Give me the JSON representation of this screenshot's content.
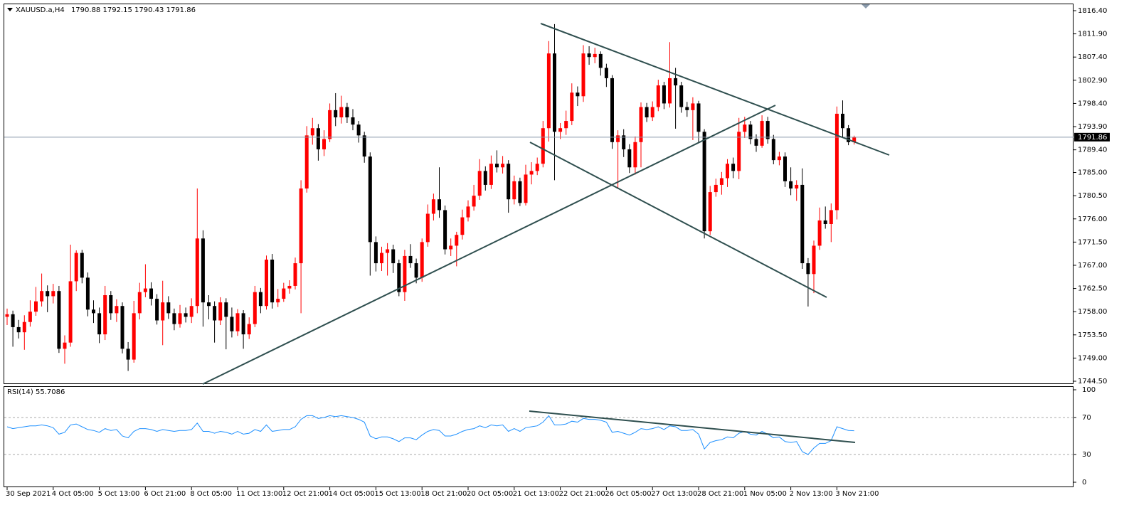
{
  "chart_data": [
    {
      "type": "candlestick",
      "symbol": "XAUUSD.a,H4",
      "up_color": "#ff0000",
      "down_color": "#000000",
      "price_line_color": "#8a9aab",
      "categories": [
        "30 Sep 2021",
        null,
        null,
        null,
        null,
        null,
        null,
        null,
        "4 Oct 05:00",
        null,
        null,
        null,
        null,
        null,
        null,
        null,
        "5 Oct 13:00",
        null,
        null,
        null,
        null,
        null,
        null,
        null,
        "6 Oct 21:00",
        null,
        null,
        null,
        null,
        null,
        null,
        null,
        "8 Oct 05:00",
        null,
        null,
        null,
        null,
        null,
        null,
        null,
        "11 Oct 13:00",
        null,
        null,
        null,
        null,
        null,
        null,
        null,
        "12 Oct 21:00",
        null,
        null,
        null,
        null,
        null,
        null,
        null,
        "14 Oct 05:00",
        null,
        null,
        null,
        null,
        null,
        null,
        null,
        "15 Oct 13:00",
        null,
        null,
        null,
        null,
        null,
        null,
        null,
        "18 Oct 21:00",
        null,
        null,
        null,
        null,
        null,
        null,
        null,
        "20 Oct 05:00",
        null,
        null,
        null,
        null,
        null,
        null,
        null,
        "21 Oct 13:00",
        null,
        null,
        null,
        null,
        null,
        null,
        null,
        "22 Oct 21:00",
        null,
        null,
        null,
        null,
        null,
        null,
        null,
        "26 Oct 05:00",
        null,
        null,
        null,
        null,
        null,
        null,
        null,
        "27 Oct 13:00",
        null,
        null,
        null,
        null,
        null,
        null,
        null,
        "28 Oct 21:00",
        null,
        null,
        null,
        null,
        null,
        null,
        null,
        "1 Nov 05:00",
        null,
        null,
        null,
        null,
        null,
        null,
        null,
        "2 Nov 13:00",
        null,
        null,
        null,
        null,
        null,
        null,
        null,
        "3 Nov 21:00",
        null,
        null,
        null
      ],
      "open": [
        1757.0,
        1757.5,
        1755,
        1754,
        1756,
        1758,
        1760,
        1762,
        1761,
        1762,
        1750.8,
        1752,
        1763.9,
        1769.4,
        1764.6,
        1758.4,
        1757.7,
        1753.6,
        1761.2,
        1757.7,
        1759.1,
        1750.8,
        1748.7,
        1757.7,
        1761.8,
        1762.5,
        1760.5,
        1756.3,
        1759.8,
        1757.7,
        1755.6,
        1757.7,
        1757.0,
        1759.1,
        1772.2,
        1759.8,
        1759.1,
        1756.3,
        1759.8,
        1757.0,
        1754.2,
        1757.7,
        1753.6,
        1755.6,
        1761.8,
        1759.1,
        1768.1,
        1759.8,
        1760.5,
        1762.5,
        1763.0,
        1767.4,
        1781.9,
        1792.2,
        1793.6,
        1789.5,
        1791.5,
        1797.1,
        1795.7,
        1797.7,
        1795.7,
        1794.3,
        1792.2,
        1788.1,
        1771.5,
        1767.4,
        1769.4,
        1770.1,
        1767.4,
        1761.8,
        1768.8,
        1767.4,
        1764.6,
        1771.5,
        1777.0,
        1779.8,
        1777.7,
        1770.1,
        1770.8,
        1772.9,
        1776.3,
        1778.4,
        1780.5,
        1785.3,
        1782.6,
        1786.7,
        1786.0,
        1786.7,
        1779.8,
        1783.3,
        1779.1,
        1784.6,
        1785.3,
        1786.7,
        1793.6,
        1808.1,
        1792.9,
        1793.6,
        1795.0,
        1800.5,
        1799.8,
        1808.1,
        1807.4,
        1808.0,
        1805.3,
        1803.3,
        1790.9,
        1792.2,
        1789.5,
        1786.0,
        1790.9,
        1797.7,
        1795.7,
        1797.7,
        1801.9,
        1798.4,
        1803.3,
        1801.9,
        1797.7,
        1797.1,
        1798.4,
        1792.9,
        1773.6,
        1781.2,
        1782.6,
        1783.9,
        1786.7,
        1785.3,
        1792.9,
        1794.3,
        1791.5,
        1790.2,
        1795.0,
        1791.5,
        1787.4,
        1788.1,
        1783.3,
        1781.9,
        1782.6,
        1767.4,
        1765.3,
        1770.8,
        1775.7,
        1775.0,
        1777.7,
        1796.4,
        1793.6,
        1790.88
      ],
      "high": [
        1758.6,
        1758.2,
        1756.4,
        1757.3,
        1760.2,
        1762.8,
        1765.4,
        1763.1,
        1763.4,
        1763.0,
        1753.4,
        1771.0,
        1769.9,
        1770.0,
        1765.6,
        1760.2,
        1758.8,
        1763.0,
        1762.0,
        1760.4,
        1759.8,
        1752.1,
        1760.1,
        1763.6,
        1767.2,
        1763.7,
        1761.4,
        1764.0,
        1761.0,
        1758.6,
        1759.3,
        1758.8,
        1760.6,
        1781.9,
        1773.8,
        1761.2,
        1760.0,
        1760.8,
        1760.6,
        1758.8,
        1758.5,
        1758.3,
        1756.9,
        1763.0,
        1762.6,
        1768.9,
        1769.2,
        1762.4,
        1763.6,
        1764.1,
        1768.5,
        1783.5,
        1794.0,
        1795.6,
        1794.4,
        1793.2,
        1798.4,
        1800.4,
        1799.9,
        1798.5,
        1797.3,
        1795.0,
        1792.9,
        1788.9,
        1772.6,
        1770.6,
        1771.3,
        1771.0,
        1768.1,
        1770.0,
        1771.1,
        1768.3,
        1772.2,
        1778.8,
        1780.9,
        1786.0,
        1778.6,
        1772.2,
        1773.5,
        1777.8,
        1779.6,
        1782.6,
        1787.6,
        1786.2,
        1788.3,
        1789.3,
        1788.2,
        1787.4,
        1784.4,
        1784.0,
        1786.5,
        1787.0,
        1787.9,
        1795.0,
        1810.5,
        1813.8,
        1794.6,
        1797.0,
        1802.3,
        1801.7,
        1809.7,
        1809.5,
        1809.2,
        1808.5,
        1806.1,
        1803.9,
        1793.2,
        1793.4,
        1790.5,
        1792.0,
        1798.6,
        1798.5,
        1798.8,
        1803.0,
        1802.6,
        1810.3,
        1805.3,
        1802.6,
        1798.7,
        1799.6,
        1798.9,
        1793.4,
        1782.4,
        1783.8,
        1785.1,
        1787.6,
        1787.9,
        1795.6,
        1795.8,
        1795.0,
        1792.4,
        1796.1,
        1795.8,
        1792.3,
        1789.0,
        1788.9,
        1786.0,
        1783.5,
        1785.8,
        1768.4,
        1771.8,
        1778.2,
        1778.4,
        1779.0,
        1797.8,
        1799.0,
        1794.2,
        1792.15
      ],
      "low": [
        1755.4,
        1751.2,
        1752.8,
        1750.6,
        1755.1,
        1757.2,
        1759.0,
        1757.9,
        1759.6,
        1750.0,
        1747.9,
        1751.2,
        1762.0,
        1763.5,
        1757.1,
        1755.8,
        1751.9,
        1752.5,
        1756.4,
        1756.0,
        1749.9,
        1746.5,
        1748.1,
        1756.5,
        1760.8,
        1759.2,
        1755.5,
        1751.5,
        1756.6,
        1754.4,
        1754.9,
        1755.9,
        1755.8,
        1757.7,
        1755.1,
        1756.5,
        1752.0,
        1755.4,
        1750.7,
        1753.0,
        1753.3,
        1750.8,
        1752.7,
        1755.0,
        1757.7,
        1758.4,
        1758.6,
        1758.9,
        1759.9,
        1761.5,
        1762.3,
        1757.7,
        1781.1,
        1790.4,
        1787.3,
        1788.2,
        1790.9,
        1794.0,
        1794.5,
        1794.6,
        1793.2,
        1790.8,
        1786.9,
        1765.0,
        1765.8,
        1765.9,
        1765.0,
        1765.5,
        1761.0,
        1760.1,
        1766.5,
        1763.5,
        1763.8,
        1770.6,
        1775.7,
        1776.2,
        1769.1,
        1768.8,
        1766.8,
        1772.0,
        1775.5,
        1777.6,
        1779.7,
        1781.5,
        1781.8,
        1785.0,
        1784.8,
        1777.2,
        1778.8,
        1778.5,
        1778.6,
        1782.7,
        1784.5,
        1786.0,
        1791.0,
        1783.5,
        1791.5,
        1792.3,
        1794.2,
        1797.9,
        1798.7,
        1805.9,
        1806.2,
        1803.8,
        1801.6,
        1789.6,
        1781.9,
        1788.0,
        1784.9,
        1784.6,
        1786.0,
        1794.8,
        1795.0,
        1796.9,
        1797.3,
        1797.6,
        1793.5,
        1796.6,
        1795.8,
        1791.3,
        1790.7,
        1772.2,
        1772.9,
        1780.3,
        1780.7,
        1782.2,
        1783.9,
        1783.7,
        1791.7,
        1790.5,
        1789.0,
        1789.8,
        1790.6,
        1786.6,
        1786.4,
        1782.2,
        1780.6,
        1779.5,
        1766.3,
        1759.0,
        1761.6,
        1770.0,
        1774.1,
        1771.5,
        1775.9,
        1791.9,
        1790.3,
        1790.43
      ],
      "close": [
        1757.5,
        1755,
        1754,
        1756,
        1758,
        1760,
        1762,
        1761,
        1762,
        1750.8,
        1752,
        1763.9,
        1769.4,
        1764.6,
        1758.4,
        1757.7,
        1753.6,
        1761.2,
        1757.7,
        1759.1,
        1750.8,
        1748.7,
        1757.7,
        1761.8,
        1762.5,
        1760.5,
        1756.3,
        1759.8,
        1757.7,
        1755.6,
        1757.7,
        1757.0,
        1759.1,
        1772.2,
        1759.8,
        1759.1,
        1756.3,
        1759.8,
        1757.0,
        1754.2,
        1757.7,
        1753.6,
        1755.6,
        1761.8,
        1759.1,
        1768.1,
        1759.8,
        1760.5,
        1762.5,
        1763.0,
        1767.4,
        1781.9,
        1792.2,
        1793.6,
        1789.5,
        1791.5,
        1797.1,
        1795.7,
        1797.7,
        1795.7,
        1794.3,
        1792.2,
        1788.1,
        1771.5,
        1767.4,
        1769.4,
        1770.1,
        1767.4,
        1761.8,
        1768.8,
        1767.4,
        1764.6,
        1771.5,
        1777.0,
        1779.8,
        1777.7,
        1770.1,
        1770.8,
        1772.9,
        1776.3,
        1778.4,
        1780.5,
        1785.3,
        1782.6,
        1786.7,
        1786.0,
        1786.7,
        1779.8,
        1783.3,
        1779.1,
        1784.6,
        1785.3,
        1786.7,
        1793.6,
        1808.1,
        1792.9,
        1793.6,
        1795.0,
        1800.5,
        1799.8,
        1808.1,
        1807.4,
        1808.0,
        1805.3,
        1803.3,
        1790.9,
        1792.2,
        1789.5,
        1786.0,
        1790.9,
        1797.7,
        1795.7,
        1797.7,
        1801.9,
        1798.4,
        1803.3,
        1801.9,
        1797.7,
        1797.1,
        1798.4,
        1792.9,
        1773.6,
        1781.2,
        1782.6,
        1783.9,
        1786.7,
        1785.3,
        1792.9,
        1794.3,
        1791.5,
        1790.2,
        1795.0,
        1791.5,
        1787.4,
        1788.1,
        1783.3,
        1781.9,
        1782.6,
        1767.4,
        1765.3,
        1770.8,
        1775.7,
        1775.0,
        1777.7,
        1796.4,
        1793.6,
        1790.9,
        1791.86
      ],
      "ylim": [
        1743.95,
        1817.78
      ],
      "yticks": [
        {
          "value": 1816.4,
          "label": "1816.40"
        },
        {
          "value": 1811.9,
          "label": "1811.90"
        },
        {
          "value": 1807.4,
          "label": "1807.40"
        },
        {
          "value": 1802.9,
          "label": "1802.90"
        },
        {
          "value": 1798.4,
          "label": "1798.40"
        },
        {
          "value": 1793.9,
          "label": "1793.90"
        },
        {
          "value": 1789.4,
          "label": "1789.40"
        },
        {
          "value": 1785.0,
          "label": "1785.00"
        },
        {
          "value": 1780.5,
          "label": "1780.50"
        },
        {
          "value": 1776.0,
          "label": "1776.00"
        },
        {
          "value": 1771.5,
          "label": "1771.50"
        },
        {
          "value": 1767.0,
          "label": "1767.00"
        },
        {
          "value": 1762.5,
          "label": "1762.50"
        },
        {
          "value": 1758.0,
          "label": "1758.00"
        },
        {
          "value": 1753.5,
          "label": "1753.50"
        },
        {
          "value": 1749.0,
          "label": "1749.00"
        },
        {
          "value": 1744.5,
          "label": "1744.50"
        }
      ]
    },
    {
      "type": "line",
      "indicator": "RSI(14)",
      "color": "#1e90ff",
      "values": [
        60,
        58,
        59,
        60,
        61,
        61,
        62,
        61,
        59,
        52,
        54,
        62,
        63,
        60,
        57,
        56,
        54,
        58,
        56,
        57,
        50,
        48,
        55,
        58,
        58,
        57,
        55,
        57,
        56,
        55,
        56,
        56,
        57,
        64,
        55,
        55,
        53,
        55,
        54,
        52,
        55,
        52,
        53,
        57,
        55,
        62,
        55,
        56,
        57,
        57,
        60,
        68,
        72,
        72,
        69,
        70,
        72,
        71,
        72,
        71,
        70,
        68,
        65,
        50,
        47,
        49,
        49,
        47,
        44,
        48,
        48,
        46,
        51,
        55,
        57,
        56,
        50,
        50,
        52,
        55,
        57,
        58,
        61,
        59,
        62,
        61,
        62,
        55,
        58,
        55,
        59,
        60,
        61,
        65,
        72,
        62,
        62,
        63,
        66,
        65,
        69,
        68,
        68,
        67,
        65,
        54,
        55,
        53,
        51,
        54,
        58,
        57,
        58,
        60,
        57,
        61,
        60,
        56,
        56,
        57,
        52,
        36,
        43,
        45,
        46,
        49,
        48,
        53,
        55,
        52,
        51,
        55,
        52,
        48,
        49,
        44,
        43,
        44,
        33,
        30,
        37,
        42,
        42,
        45,
        60,
        58,
        56,
        55.7086
      ],
      "ylim": [
        0,
        100
      ],
      "yticks": [
        0,
        30,
        70,
        100
      ],
      "levels": [
        30,
        70
      ]
    }
  ]
}
